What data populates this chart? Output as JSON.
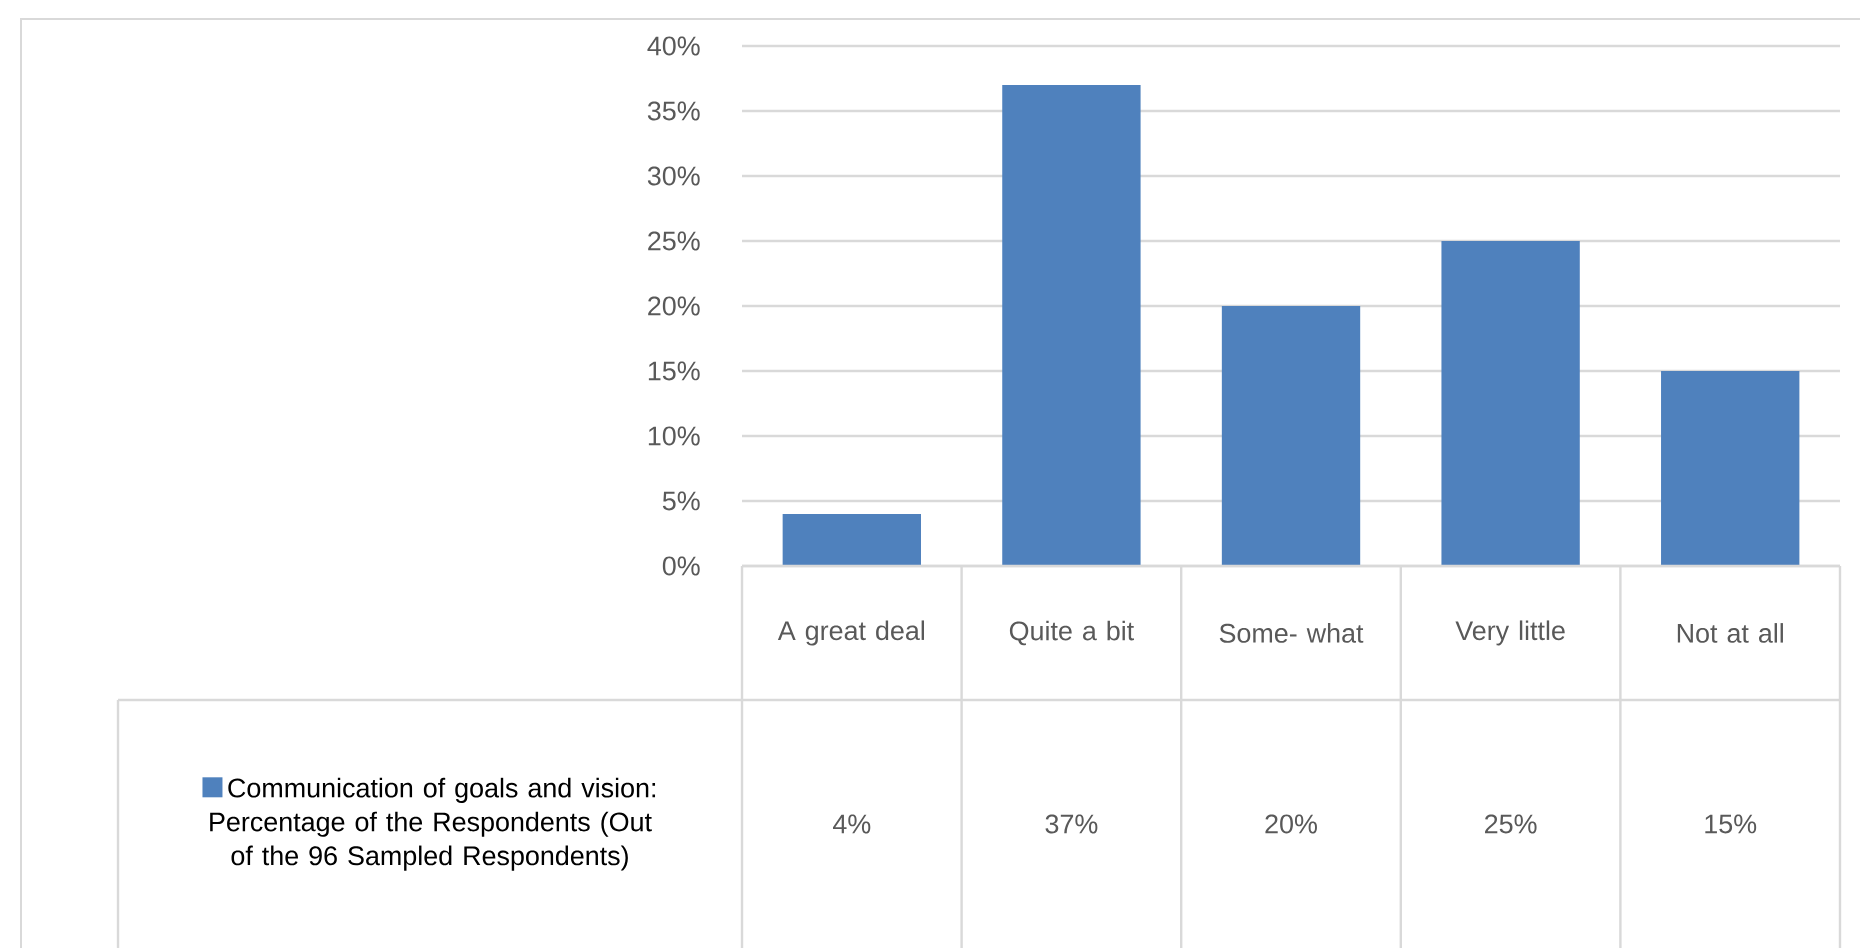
{
  "chart_data": {
    "type": "bar",
    "categories": [
      "A great deal",
      "Quite a bit",
      "Some- what",
      "Very little",
      "Not at all"
    ],
    "series": [
      {
        "name": "Communication of goals and vision: Percentage of the Respondents (Out of the 96 Sampled Respondents)",
        "color": "#4f81bd",
        "values": [
          4,
          37,
          20,
          25,
          15
        ],
        "value_labels": [
          "4%",
          "37%",
          "20%",
          "25%",
          "15%"
        ]
      }
    ],
    "ylim": [
      0,
      40
    ],
    "yticks": [
      {
        "value": 0,
        "label": "0%"
      },
      {
        "value": 5,
        "label": "5%"
      },
      {
        "value": 10,
        "label": "10%"
      },
      {
        "value": 15,
        "label": "15%"
      },
      {
        "value": 20,
        "label": "20%"
      },
      {
        "value": 25,
        "label": "25%"
      },
      {
        "value": 30,
        "label": "30%"
      },
      {
        "value": 35,
        "label": "35%"
      },
      {
        "value": 40,
        "label": "40%"
      }
    ],
    "grid": "y",
    "legend": "bottom left"
  }
}
